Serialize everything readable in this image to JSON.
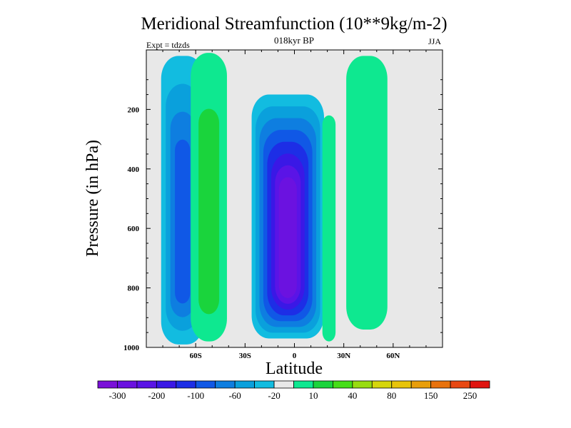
{
  "chart_data": {
    "type": "heatmap",
    "title": "Meridional Streamfunction (10**9kg/m-2)",
    "subtitle": "018kyr BP",
    "left_label": "Expt = tdzds",
    "right_label": "JJA",
    "xlabel": "Latitude",
    "ylabel": "Pressure (in hPa)",
    "xlim": [
      -90,
      90
    ],
    "ylim": [
      0,
      1000
    ],
    "y_inverted": true,
    "x_ticks": [
      {
        "value": -60,
        "label": "60S"
      },
      {
        "value": -30,
        "label": "30S"
      },
      {
        "value": 0,
        "label": "0"
      },
      {
        "value": 30,
        "label": "30N"
      },
      {
        "value": 60,
        "label": "60N"
      }
    ],
    "y_ticks": [
      {
        "value": 200,
        "label": "200"
      },
      {
        "value": 400,
        "label": "400"
      },
      {
        "value": 600,
        "label": "600"
      },
      {
        "value": 800,
        "label": "800"
      },
      {
        "value": 1000,
        "label": "1000"
      }
    ],
    "colorbar": {
      "colors": [
        "#7a10d8",
        "#6b12e0",
        "#5a14e6",
        "#3a18e6",
        "#1d2ee6",
        "#1058e6",
        "#0e7ee0",
        "#0aa0dc",
        "#12bce0",
        "#e8e8e8",
        "#0ee890",
        "#1ad43c",
        "#46de18",
        "#98dc10",
        "#d6d60c",
        "#e8c40a",
        "#e89e0a",
        "#e8720c",
        "#e84812",
        "#e01410"
      ],
      "labels": [
        {
          "boundary": 1,
          "label": "-300"
        },
        {
          "boundary": 3,
          "label": "-200"
        },
        {
          "boundary": 5,
          "label": "-100"
        },
        {
          "boundary": 7,
          "label": "-60"
        },
        {
          "boundary": 9,
          "label": "-20"
        },
        {
          "boundary": 11,
          "label": "10"
        },
        {
          "boundary": 13,
          "label": "40"
        },
        {
          "boundary": 15,
          "label": "80"
        },
        {
          "boundary": 17,
          "label": "150"
        },
        {
          "boundary": 19,
          "label": "250"
        }
      ]
    },
    "cells": [
      {
        "name": "sh-ferrel-cell",
        "lat_min": -84,
        "lat_max": -58,
        "p_top": 20,
        "p_bottom": 990,
        "center_lat": -68,
        "levels": [
          "#12bce0",
          "#0aa0dc",
          "#0e7ee0",
          "#1058e6"
        ]
      },
      {
        "name": "sh-polar-cell",
        "lat_min": -60,
        "lat_max": -38,
        "p_top": 10,
        "p_bottom": 980,
        "center_lat": -52,
        "levels": [
          "#0ee890",
          "#1ad43c"
        ]
      },
      {
        "name": "hadley-cell",
        "lat_min": -30,
        "lat_max": 14,
        "p_top": 150,
        "p_bottom": 970,
        "center_lat": -4,
        "levels": [
          "#12bce0",
          "#0aa0dc",
          "#0e7ee0",
          "#1058e6",
          "#1d2ee6",
          "#3a18e6",
          "#5a14e6",
          "#6b12e0"
        ]
      },
      {
        "name": "nh-subtropical-cell",
        "lat_min": 18,
        "lat_max": 26,
        "p_top": 220,
        "p_bottom": 980,
        "center_lat": 21,
        "levels": [
          "#0ee890"
        ]
      },
      {
        "name": "nh-midlatitude-cell",
        "lat_min": 30,
        "lat_max": 55,
        "p_top": 20,
        "p_bottom": 940,
        "center_lat": 44,
        "levels": [
          "#0ee890"
        ]
      }
    ]
  }
}
